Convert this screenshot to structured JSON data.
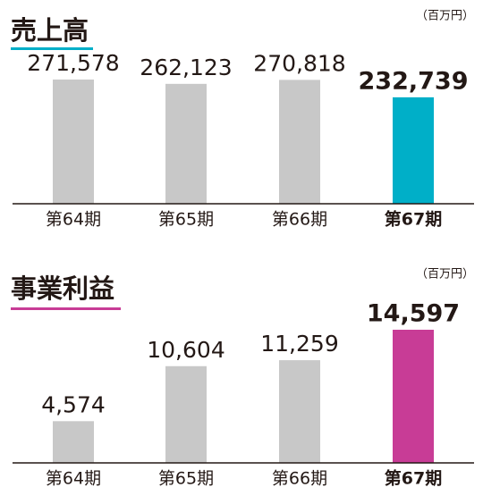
{
  "chart_data": [
    {
      "type": "bar",
      "title": "売上高",
      "unit": "（百万円）",
      "title_color": "#00afc8",
      "categories": [
        "第64期",
        "第65期",
        "第66期",
        "第67期"
      ],
      "values": [
        271578,
        262123,
        270818,
        232739
      ],
      "value_labels": [
        "271,578",
        "262,123",
        "270,818",
        "232,739"
      ],
      "colors": [
        "#c8c8c8",
        "#c8c8c8",
        "#c8c8c8",
        "#00afc8"
      ]
    },
    {
      "type": "bar",
      "title": "事業利益",
      "unit": "（百万円）",
      "title_color": "#c83c96",
      "categories": [
        "第64期",
        "第65期",
        "第66期",
        "第67期"
      ],
      "values": [
        4574,
        10604,
        11259,
        14597
      ],
      "value_labels": [
        "4,574",
        "10,604",
        "11,259",
        "14,597"
      ],
      "colors": [
        "#c8c8c8",
        "#c8c8c8",
        "#c8c8c8",
        "#c83c96"
      ]
    }
  ]
}
